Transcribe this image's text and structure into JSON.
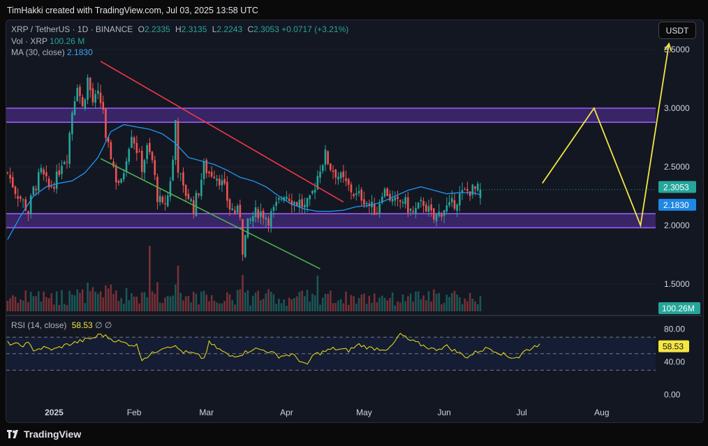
{
  "header": {
    "credit": "TimHakki created with TradingView.com, Jul 03, 2025 13:58 UTC",
    "currency_button": "USDT"
  },
  "legend": {
    "symbol": "XRP / TetherUS · 1D · BINANCE",
    "open_label": "O",
    "open": "2.2335",
    "high_label": "H",
    "high": "2.3135",
    "low_label": "L",
    "low": "2.2243",
    "close_label": "C",
    "close": "2.3053",
    "change": "+0.0717 (+3.21%)",
    "vol_label": "Vol · XRP",
    "vol": "100.26 M",
    "ma_label": "MA (30, close)",
    "ma": "2.1830"
  },
  "rsi_legend": {
    "label": "RSI (14, close)",
    "value": "58.53",
    "extra1": "∅",
    "extra2": "∅"
  },
  "footer": {
    "brand": "TradingView"
  },
  "colors": {
    "bg": "#131722",
    "up": "#26a69a",
    "down": "#ef5350",
    "ma": "#2196f3",
    "zone": "#7b3fe4",
    "resistance": "#f23645",
    "support": "#4caf50",
    "projection": "#f5e642",
    "rsi": "#e0d21a"
  },
  "chart_data": {
    "type": "candlestick",
    "title": "XRP / TetherUS · 1D · BINANCE",
    "price_axis": {
      "min": 1.25,
      "max": 3.75,
      "ticks": [
        3.5,
        3.0,
        2.5,
        2.0,
        1.5
      ],
      "tick_labels": [
        "3.5000",
        "3.0000",
        "2.5000",
        "2.0000",
        "1.5000"
      ]
    },
    "time_axis": {
      "labels": [
        "2025",
        "Feb",
        "Mar",
        "Apr",
        "May",
        "Jun",
        "Jul",
        "Aug"
      ],
      "label_day_index": [
        18,
        49,
        77,
        108,
        138,
        169,
        199,
        230
      ],
      "first_date": "2024-12-14",
      "total_days": 252
    },
    "markers": {
      "last_price": "2.3053",
      "ma_value": "2.1830",
      "volume": "100.26M"
    },
    "zones": [
      {
        "name": "resistance-zone",
        "low": 2.88,
        "high": 3.0
      },
      {
        "name": "support-zone",
        "low": 1.98,
        "high": 2.1
      }
    ],
    "trendlines": [
      {
        "name": "resistance-trendline",
        "from": [
          36,
          3.4
        ],
        "to": [
          130,
          2.2
        ]
      },
      {
        "name": "support-trendline",
        "from": [
          36,
          2.57
        ],
        "to": [
          121,
          1.63
        ]
      }
    ],
    "projection": [
      [
        207,
        2.36
      ],
      [
        227,
        3.0
      ],
      [
        245,
        2.0
      ],
      [
        256,
        3.55
      ]
    ],
    "rsi": {
      "label": "RSI (14, close)",
      "value": 58.53,
      "levels": [
        70,
        50,
        30
      ],
      "ticks": [
        80,
        40,
        0
      ],
      "tick_labels": [
        "80.00",
        "40.00",
        "0.00"
      ],
      "anchors": [
        [
          0,
          63
        ],
        [
          5,
          60
        ],
        [
          8,
          62
        ],
        [
          10,
          55
        ],
        [
          14,
          57
        ],
        [
          18,
          55
        ],
        [
          22,
          60
        ],
        [
          28,
          65
        ],
        [
          34,
          70
        ],
        [
          36,
          74
        ],
        [
          40,
          68
        ],
        [
          45,
          63
        ],
        [
          50,
          60
        ],
        [
          52,
          44
        ],
        [
          55,
          48
        ],
        [
          60,
          58
        ],
        [
          64,
          60
        ],
        [
          68,
          52
        ],
        [
          72,
          50
        ],
        [
          76,
          44
        ],
        [
          78,
          63
        ],
        [
          82,
          55
        ],
        [
          86,
          47
        ],
        [
          90,
          49
        ],
        [
          95,
          56
        ],
        [
          100,
          54
        ],
        [
          105,
          47
        ],
        [
          110,
          49
        ],
        [
          114,
          40
        ],
        [
          116,
          35
        ],
        [
          118,
          48
        ],
        [
          122,
          52
        ],
        [
          126,
          56
        ],
        [
          132,
          54
        ],
        [
          136,
          61
        ],
        [
          140,
          57
        ],
        [
          144,
          56
        ],
        [
          148,
          56
        ],
        [
          152,
          74
        ],
        [
          155,
          67
        ],
        [
          160,
          61
        ],
        [
          165,
          55
        ],
        [
          170,
          59
        ],
        [
          174,
          52
        ],
        [
          178,
          46
        ],
        [
          182,
          53
        ],
        [
          186,
          57
        ],
        [
          190,
          52
        ],
        [
          194,
          46
        ],
        [
          198,
          46
        ],
        [
          200,
          53
        ],
        [
          203,
          57
        ],
        [
          206,
          62
        ]
      ]
    },
    "ma_anchors": [
      [
        0,
        1.88
      ],
      [
        5,
        2.08
      ],
      [
        10,
        2.25
      ],
      [
        15,
        2.33
      ],
      [
        20,
        2.36
      ],
      [
        25,
        2.38
      ],
      [
        30,
        2.45
      ],
      [
        35,
        2.58
      ],
      [
        40,
        2.8
      ],
      [
        45,
        2.86
      ],
      [
        50,
        2.84
      ],
      [
        55,
        2.82
      ],
      [
        60,
        2.78
      ],
      [
        65,
        2.7
      ],
      [
        70,
        2.58
      ],
      [
        75,
        2.55
      ],
      [
        80,
        2.52
      ],
      [
        85,
        2.47
      ],
      [
        90,
        2.41
      ],
      [
        95,
        2.38
      ],
      [
        100,
        2.33
      ],
      [
        105,
        2.25
      ],
      [
        110,
        2.18
      ],
      [
        115,
        2.14
      ],
      [
        120,
        2.12
      ],
      [
        125,
        2.12
      ],
      [
        130,
        2.13
      ],
      [
        135,
        2.16
      ],
      [
        140,
        2.17
      ],
      [
        145,
        2.2
      ],
      [
        150,
        2.25
      ],
      [
        155,
        2.3
      ],
      [
        160,
        2.33
      ],
      [
        165,
        2.3
      ],
      [
        170,
        2.27
      ],
      [
        175,
        2.28
      ],
      [
        180,
        2.28
      ],
      [
        185,
        2.25
      ],
      [
        190,
        2.2
      ],
      [
        195,
        2.18
      ],
      [
        200,
        2.18
      ],
      [
        203,
        2.18
      ]
    ],
    "price_anchors": [
      [
        0,
        2.45
      ],
      [
        3,
        2.3
      ],
      [
        6,
        2.2
      ],
      [
        8,
        2.12
      ],
      [
        10,
        2.3
      ],
      [
        13,
        2.45
      ],
      [
        16,
        2.32
      ],
      [
        19,
        2.4
      ],
      [
        21,
        2.55
      ],
      [
        23,
        2.6
      ],
      [
        25,
        2.98
      ],
      [
        27,
        3.22
      ],
      [
        29,
        3.0
      ],
      [
        31,
        3.25
      ],
      [
        33,
        3.05
      ],
      [
        35,
        3.1
      ],
      [
        37,
        3.0
      ],
      [
        38,
        2.7
      ],
      [
        40,
        2.6
      ],
      [
        42,
        2.4
      ],
      [
        44,
        2.35
      ],
      [
        46,
        2.6
      ],
      [
        48,
        2.8
      ],
      [
        50,
        2.65
      ],
      [
        52,
        2.5
      ],
      [
        54,
        2.65
      ],
      [
        56,
        2.55
      ],
      [
        58,
        2.25
      ],
      [
        60,
        2.15
      ],
      [
        62,
        2.25
      ],
      [
        64,
        2.55
      ],
      [
        65,
        2.9
      ],
      [
        66,
        2.5
      ],
      [
        68,
        2.3
      ],
      [
        70,
        2.25
      ],
      [
        72,
        2.15
      ],
      [
        74,
        2.3
      ],
      [
        76,
        2.5
      ],
      [
        78,
        2.45
      ],
      [
        80,
        2.45
      ],
      [
        82,
        2.4
      ],
      [
        84,
        2.3
      ],
      [
        86,
        2.15
      ],
      [
        88,
        2.12
      ],
      [
        90,
        2.1
      ],
      [
        91,
        1.8
      ],
      [
        93,
        2.0
      ],
      [
        95,
        2.08
      ],
      [
        97,
        2.12
      ],
      [
        99,
        2.1
      ],
      [
        101,
        2.06
      ],
      [
        103,
        2.12
      ],
      [
        105,
        2.2
      ],
      [
        107,
        2.28
      ],
      [
        109,
        2.25
      ],
      [
        111,
        2.2
      ],
      [
        113,
        2.2
      ],
      [
        115,
        2.15
      ],
      [
        117,
        2.2
      ],
      [
        119,
        2.35
      ],
      [
        121,
        2.5
      ],
      [
        123,
        2.6
      ],
      [
        125,
        2.5
      ],
      [
        127,
        2.45
      ],
      [
        129,
        2.4
      ],
      [
        131,
        2.35
      ],
      [
        133,
        2.3
      ],
      [
        135,
        2.25
      ],
      [
        137,
        2.25
      ],
      [
        139,
        2.2
      ],
      [
        141,
        2.15
      ],
      [
        143,
        2.12
      ],
      [
        145,
        2.3
      ],
      [
        147,
        2.28
      ],
      [
        149,
        2.2
      ],
      [
        151,
        2.18
      ],
      [
        153,
        2.22
      ],
      [
        155,
        2.15
      ],
      [
        157,
        2.1
      ],
      [
        159,
        2.15
      ],
      [
        161,
        2.2
      ],
      [
        163,
        2.12
      ],
      [
        165,
        2.05
      ],
      [
        167,
        2.1
      ],
      [
        169,
        2.15
      ],
      [
        171,
        2.15
      ],
      [
        173,
        2.2
      ],
      [
        175,
        2.25
      ],
      [
        177,
        2.28
      ],
      [
        179,
        2.3
      ],
      [
        181,
        2.3
      ],
      [
        183,
        2.305
      ]
    ],
    "volume_avg": 0.2
  }
}
